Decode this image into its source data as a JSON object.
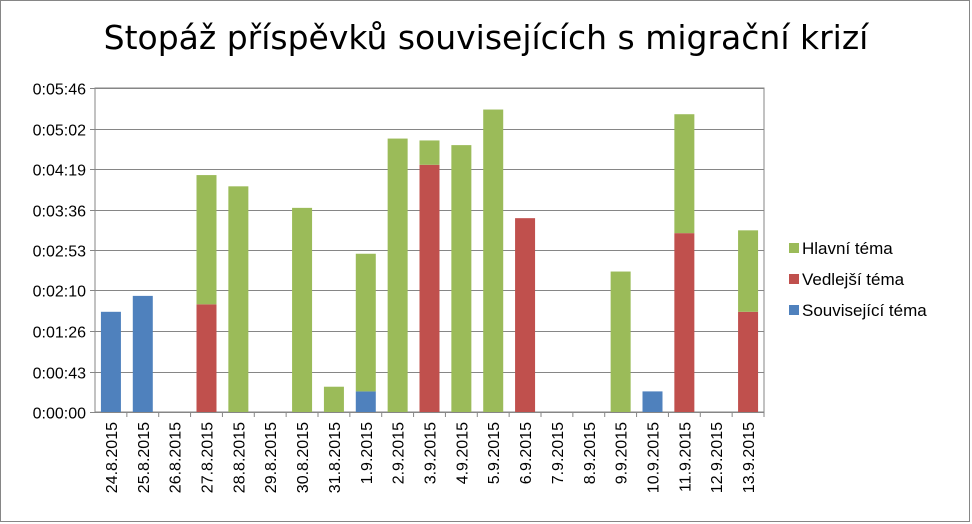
{
  "chart_data": {
    "type": "bar",
    "stacked": true,
    "title": "Stopáž příspěvků souvisejících s migrační krizí",
    "xlabel": "",
    "ylabel": "",
    "y_unit": "seconds",
    "ylim": [
      0,
      346
    ],
    "yticks": [
      0,
      43,
      86,
      130,
      173,
      216,
      259,
      302,
      346
    ],
    "ytick_labels": [
      "0:00:00",
      "0:00:43",
      "0:01:26",
      "0:02:10",
      "0:02:53",
      "0:03:36",
      "0:04:19",
      "0:05:02",
      "0:05:46"
    ],
    "grid": true,
    "legend_position": "right",
    "categories": [
      "24.8.2015",
      "25.8.2015",
      "26.8.2015",
      "27.8.2015",
      "28.8.2015",
      "29.8.2015",
      "30.8.2015",
      "31.8.2015",
      "1.9.2015",
      "2.9.2015",
      "3.9.2015",
      "4.9.2015",
      "5.9.2015",
      "6.9.2015",
      "7.9.2015",
      "8.9.2015",
      "9.9.2015",
      "10.9.2015",
      "11.9.2015",
      "12.9.2015",
      "13.9.2015"
    ],
    "series": [
      {
        "name": "Související téma",
        "color": "#4f81bd",
        "values": [
          107,
          124,
          0,
          0,
          0,
          0,
          0,
          0,
          22,
          0,
          0,
          0,
          0,
          0,
          0,
          0,
          0,
          22,
          0,
          0,
          0
        ]
      },
      {
        "name": "Vedlejší téma",
        "color": "#c0504d",
        "values": [
          0,
          0,
          0,
          115,
          0,
          0,
          0,
          0,
          0,
          0,
          264,
          0,
          0,
          207,
          0,
          0,
          0,
          0,
          191,
          0,
          107
        ]
      },
      {
        "name": "Hlavní téma",
        "color": "#9bbb59",
        "values": [
          0,
          0,
          0,
          138,
          241,
          0,
          218,
          27,
          147,
          292,
          26,
          285,
          323,
          0,
          0,
          0,
          150,
          0,
          127,
          0,
          87
        ]
      }
    ],
    "legend_order": [
      "Hlavní téma",
      "Vedlejší téma",
      "Související téma"
    ]
  }
}
